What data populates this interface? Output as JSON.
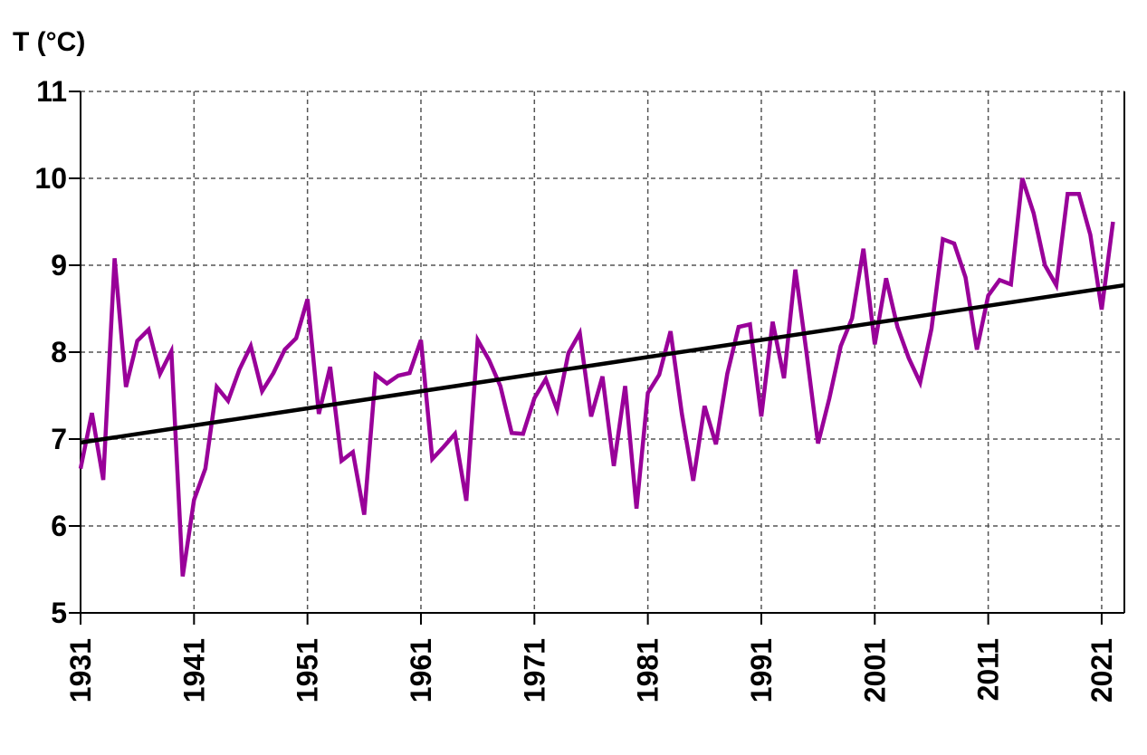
{
  "chart_data": {
    "type": "line",
    "title": "",
    "ylabel": "T (°C)",
    "xlabel": "",
    "ylim": [
      5,
      11
    ],
    "xlim": [
      1931,
      2023
    ],
    "grid": true,
    "yticks": [
      "5",
      "6",
      "7",
      "8",
      "9",
      "10",
      "11"
    ],
    "xticks": [
      "1931",
      "1941",
      "1951",
      "1961",
      "1971",
      "1981",
      "1991",
      "2001",
      "2011",
      "2021"
    ],
    "colors": {
      "series": "#990099",
      "trend": "#000000",
      "grid": "#555555"
    },
    "series": [
      {
        "name": "T",
        "x_start": 1931,
        "values": [
          6.66,
          7.3,
          6.53,
          9.08,
          7.6,
          8.13,
          8.26,
          7.75,
          8.01,
          5.42,
          6.3,
          6.66,
          7.6,
          7.44,
          7.8,
          8.07,
          7.55,
          7.76,
          8.03,
          8.16,
          8.61,
          7.29,
          7.83,
          6.75,
          6.85,
          6.13,
          7.74,
          7.64,
          7.73,
          7.76,
          8.14,
          6.77,
          6.91,
          7.06,
          6.29,
          8.14,
          7.91,
          7.61,
          7.07,
          7.06,
          7.47,
          7.69,
          7.34,
          7.99,
          8.22,
          7.26,
          7.72,
          6.69,
          7.61,
          6.2,
          7.53,
          7.74,
          8.24,
          7.29,
          6.52,
          7.38,
          6.94,
          7.75,
          8.29,
          8.32,
          7.26,
          8.35,
          7.7,
          8.95,
          7.98,
          6.95,
          7.47,
          8.07,
          8.39,
          9.19,
          8.09,
          8.85,
          8.29,
          7.93,
          7.65,
          8.27,
          9.3,
          9.25,
          8.86,
          8.03,
          8.65,
          8.83,
          8.78,
          10.0,
          9.6,
          9.0,
          8.77,
          9.82,
          9.82,
          9.35,
          8.49,
          9.5
        ]
      },
      {
        "name": "linear trend",
        "x": [
          1931,
          2023
        ],
        "values": [
          6.96,
          8.77
        ]
      }
    ]
  }
}
